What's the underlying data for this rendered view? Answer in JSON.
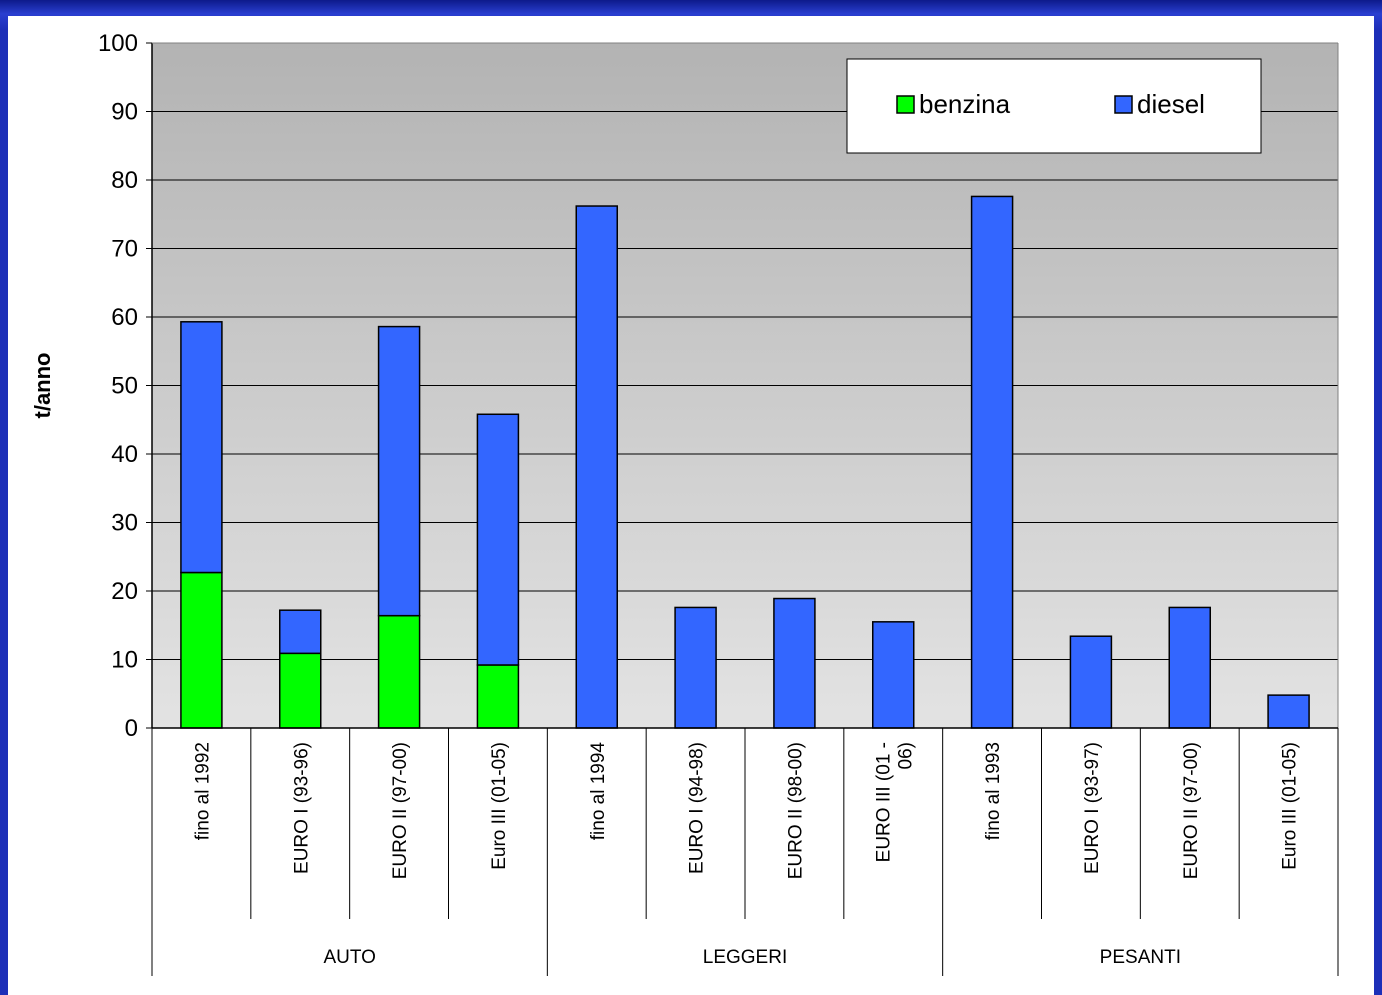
{
  "slide": {
    "background": "#1d2fb8"
  },
  "chart_data": {
    "type": "bar",
    "stacked": true,
    "ylabel": "t/anno",
    "ylim": [
      0,
      100
    ],
    "yticks": [
      0,
      10,
      20,
      30,
      40,
      50,
      60,
      70,
      80,
      90,
      100
    ],
    "grid": true,
    "legend_position": "top-right",
    "categories": [
      [
        "fino al 1992"
      ],
      [
        "EURO I (93-96)"
      ],
      [
        "EURO II (97-00)"
      ],
      [
        "Euro III (01-05)"
      ],
      [
        "fino al 1994"
      ],
      [
        "EURO I (94-98)"
      ],
      [
        "EURO II (98-00)"
      ],
      [
        "EURO III (01 -",
        "06)"
      ],
      [
        "fino al  1993"
      ],
      [
        "EURO I (93-97)"
      ],
      [
        "EURO II (97-00)"
      ],
      [
        "Euro III (01-05)"
      ]
    ],
    "groups": [
      {
        "label": "AUTO",
        "size": 4
      },
      {
        "label": "LEGGERI",
        "size": 4
      },
      {
        "label": "PESANTI",
        "size": 4
      }
    ],
    "series": [
      {
        "name": "benzina",
        "color": "#00ff00",
        "values": [
          22.7,
          10.9,
          16.4,
          9.2,
          0,
          0,
          0,
          0,
          0,
          0,
          0,
          0
        ]
      },
      {
        "name": "diesel",
        "color": "#3366ff",
        "values": [
          36.6,
          6.3,
          42.2,
          36.6,
          76.2,
          17.6,
          18.9,
          15.5,
          77.6,
          13.4,
          17.6,
          4.8
        ]
      }
    ]
  }
}
